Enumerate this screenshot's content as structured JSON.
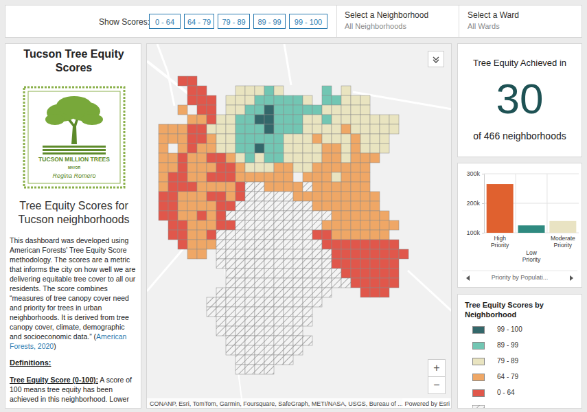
{
  "header": {
    "show_scores_label": "Show Scores:",
    "score_buttons": [
      "0 - 64",
      "64 - 79",
      "79 - 89",
      "89 - 99",
      "99 - 100"
    ],
    "neighborhood_label": "Select a Neighborhood",
    "neighborhood_value": "All Neighborhoods",
    "ward_label": "Select a Ward",
    "ward_value": "All Wards"
  },
  "sidebar": {
    "title": "Tucson Tree Equity Scores",
    "logo": {
      "name": "TUCSON MILLION TREES",
      "role": "MAYOR",
      "signature": "Regina Romero"
    },
    "subtitle": "Tree Equity Scores for Tucson neighborhoods",
    "intro": "This dashboard was developed using American Forests' Tree Equity Score methodology. The scores are a metric that informs the city on how well we are delivering equitable tree cover to all our residents. The score combines “measures of tree canopy cover need and priority for trees in urban neighborhoods. It is derived from tree canopy cover, climate, demographic and socioeconomic data.” (",
    "intro_link": "American Forests, 2020",
    "intro_end": ")",
    "definitions_heading": "Definitions:",
    "definition_term": "Tree Equity Score (0-100):",
    "definition_text": " A score of 100 means tree equity has been achieved in this neighborhood. Lower"
  },
  "map": {
    "attribution": "CONANP, Esri, TomTom, Garmin, Foursquare, SafeGraph, METI/NASA, USGS, Bureau of ...",
    "powered_by": "Powered by Esri",
    "zoom_in": "+",
    "zoom_out": "−"
  },
  "kpi": {
    "title": "Tree Equity Achieved in",
    "value": 30,
    "subtitle": "of 466 neighborhoods"
  },
  "chart_data": {
    "type": "bar",
    "categories": [
      "High Priority",
      "Low Priority",
      "Moderate Priority"
    ],
    "values": [
      265000,
      125000,
      140000
    ],
    "colors": [
      "#e0612f",
      "#2f8a80",
      "#e9e3c3"
    ],
    "ylim": [
      100000,
      300000
    ],
    "yticks": [
      {
        "value": 100000,
        "label": "100k"
      },
      {
        "value": 200000,
        "label": "200k"
      },
      {
        "value": 300000,
        "label": "300k"
      }
    ],
    "grid": true
  },
  "chart_nav": {
    "label": "Priority by Populati..."
  },
  "legend": {
    "title": "Tree Equity Scores by Neighborhood",
    "items": [
      {
        "label": "99 - 100",
        "color": "#33676a"
      },
      {
        "label": "89 - 99",
        "color": "#72c6b3"
      },
      {
        "label": "79 - 89",
        "color": "#e9e4c0"
      },
      {
        "label": "64 - 79",
        "color": "#efa766"
      },
      {
        "label": "0 - 64",
        "color": "#e0574b"
      }
    ]
  }
}
